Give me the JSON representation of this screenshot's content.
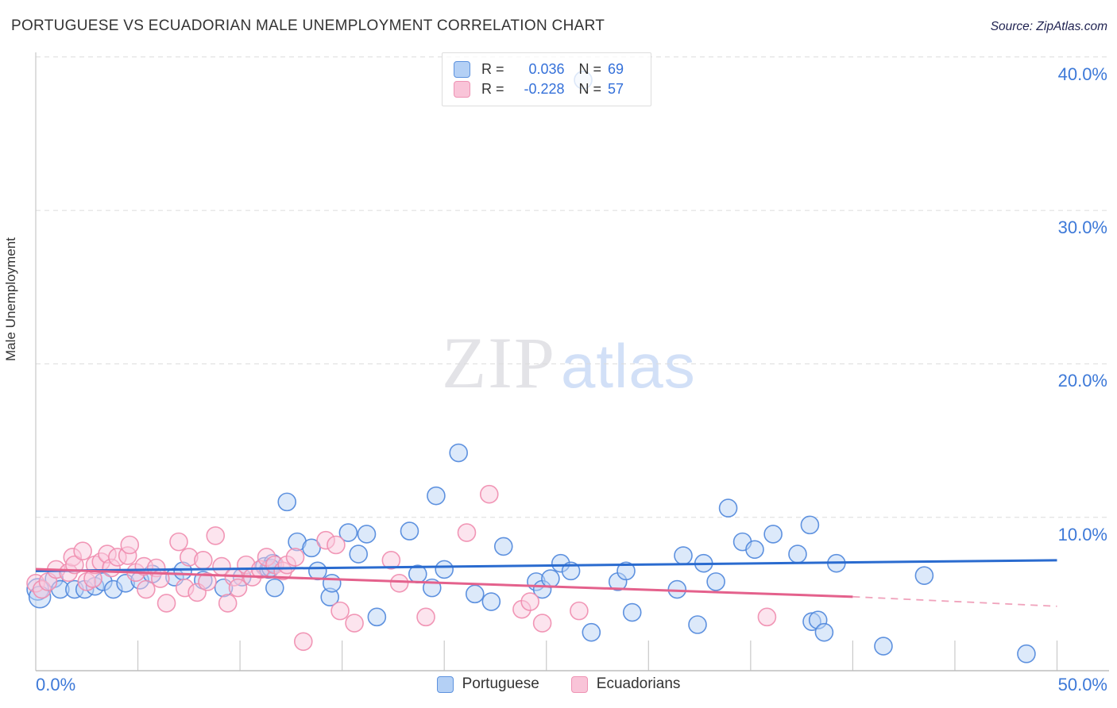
{
  "header": {
    "title": "PORTUGUESE VS ECUADORIAN MALE UNEMPLOYMENT CORRELATION CHART",
    "source": "Source: ZipAtlas.com"
  },
  "watermark": {
    "zip": "ZIP",
    "atlas": "atlas"
  },
  "y_axis": {
    "label": "Male Unemployment",
    "ticks": [
      {
        "value": 40,
        "label": "40.0%"
      },
      {
        "value": 30,
        "label": "30.0%"
      },
      {
        "value": 20,
        "label": "20.0%"
      },
      {
        "value": 10,
        "label": "10.0%"
      }
    ]
  },
  "x_axis": {
    "left_label": "0.0%",
    "right_label": "50.0%"
  },
  "stats_legend": {
    "rows": [
      {
        "series": "Portuguese",
        "r_label": "R =",
        "r_value": "0.036",
        "n_label": "N =",
        "n_value": "69"
      },
      {
        "series": "Ecuadorians",
        "r_label": "R =",
        "r_value": "-0.228",
        "n_label": "N =",
        "n_value": "57"
      }
    ]
  },
  "bottom_legend": {
    "items": [
      {
        "label": "Portuguese"
      },
      {
        "label": "Ecuadorians"
      }
    ]
  },
  "colors": {
    "blue_fill": "#b9d3f5",
    "blue_stroke": "#4e86dc",
    "blue_trend": "#2a6bcf",
    "pink_fill": "#facadd",
    "pink_stroke": "#f08cae",
    "pink_trend": "#e4618c",
    "pink_trend_dash": "#f0a3bc",
    "grid": "#dcdcdc",
    "axis": "#bdbdbd",
    "tick": "#c9c9c9",
    "label_blue": "#3d79d8"
  },
  "chart_data": {
    "type": "scatter",
    "xlabel": "",
    "ylabel": "Male Unemployment",
    "xlim": [
      0,
      50
    ],
    "ylim": [
      0,
      40.3
    ],
    "x_tick_step": 5,
    "gridlines_y": [
      10,
      20,
      30,
      40
    ],
    "legend_position": "bottom",
    "series": [
      {
        "name": "Portuguese",
        "R": 0.036,
        "N": 69,
        "points": [
          [
            0.1,
            5.3,
            13.5
          ],
          [
            0.2,
            4.8,
            13.5
          ],
          [
            0.9,
            6.0
          ],
          [
            1.2,
            5.3
          ],
          [
            1.9,
            5.3
          ],
          [
            2.4,
            5.3
          ],
          [
            2.9,
            5.5
          ],
          [
            3.3,
            5.8
          ],
          [
            3.8,
            5.3
          ],
          [
            4.4,
            5.7
          ],
          [
            5.1,
            5.9
          ],
          [
            5.7,
            6.3
          ],
          [
            6.8,
            6.1
          ],
          [
            7.2,
            6.5
          ],
          [
            8.2,
            5.9
          ],
          [
            9.2,
            5.4
          ],
          [
            10.1,
            6.1
          ],
          [
            11.2,
            6.8
          ],
          [
            11.4,
            6.6
          ],
          [
            11.6,
            7.0
          ],
          [
            11.5,
            6.7
          ],
          [
            11.7,
            5.4
          ],
          [
            12.3,
            11.0
          ],
          [
            12.8,
            8.4
          ],
          [
            13.5,
            8.0
          ],
          [
            13.8,
            6.5
          ],
          [
            14.4,
            4.8
          ],
          [
            14.5,
            5.7
          ],
          [
            15.3,
            9.0
          ],
          [
            15.8,
            7.6
          ],
          [
            16.2,
            8.9
          ],
          [
            16.7,
            3.5
          ],
          [
            18.3,
            9.1
          ],
          [
            18.7,
            6.3
          ],
          [
            19.4,
            5.4
          ],
          [
            19.6,
            11.4
          ],
          [
            20.0,
            6.6
          ],
          [
            20.7,
            14.2
          ],
          [
            21.5,
            5.0
          ],
          [
            22.3,
            4.5
          ],
          [
            22.9,
            8.1
          ],
          [
            24.5,
            5.8
          ],
          [
            24.8,
            5.3
          ],
          [
            25.2,
            6.0
          ],
          [
            25.7,
            7.0
          ],
          [
            26.2,
            6.5
          ],
          [
            26.8,
            38.5
          ],
          [
            27.2,
            2.5
          ],
          [
            28.5,
            5.8
          ],
          [
            28.9,
            6.5
          ],
          [
            29.2,
            3.8
          ],
          [
            31.4,
            5.3
          ],
          [
            31.7,
            7.5
          ],
          [
            32.4,
            3.0
          ],
          [
            32.7,
            7.0
          ],
          [
            33.3,
            5.8
          ],
          [
            33.9,
            10.6
          ],
          [
            34.6,
            8.4
          ],
          [
            35.2,
            7.9
          ],
          [
            36.1,
            8.9
          ],
          [
            37.3,
            7.6
          ],
          [
            37.9,
            9.5
          ],
          [
            38.0,
            3.2
          ],
          [
            38.3,
            3.3
          ],
          [
            38.6,
            2.5
          ],
          [
            39.2,
            7.0
          ],
          [
            41.5,
            1.6
          ],
          [
            43.5,
            6.2
          ],
          [
            48.5,
            1.1
          ]
        ],
        "trend": {
          "x1": 0,
          "y1": 6.5,
          "x2": 50,
          "y2": 7.2
        }
      },
      {
        "name": "Ecuadorians",
        "R": -0.228,
        "N": 57,
        "points": [
          [
            0.0,
            5.7
          ],
          [
            0.3,
            5.3
          ],
          [
            0.6,
            5.8
          ],
          [
            1.0,
            6.6
          ],
          [
            1.6,
            6.4
          ],
          [
            1.8,
            7.4
          ],
          [
            1.9,
            6.9
          ],
          [
            2.3,
            7.8
          ],
          [
            2.5,
            5.8
          ],
          [
            2.8,
            6.0
          ],
          [
            2.9,
            6.9
          ],
          [
            3.2,
            7.1
          ],
          [
            3.5,
            7.6
          ],
          [
            3.7,
            6.7
          ],
          [
            4.0,
            7.4
          ],
          [
            4.5,
            7.5
          ],
          [
            4.6,
            8.2
          ],
          [
            4.9,
            6.4
          ],
          [
            5.3,
            6.8
          ],
          [
            5.4,
            5.3
          ],
          [
            5.9,
            6.7
          ],
          [
            6.1,
            6.0
          ],
          [
            6.4,
            4.4
          ],
          [
            7.0,
            8.4
          ],
          [
            7.3,
            5.4
          ],
          [
            7.5,
            7.4
          ],
          [
            7.9,
            5.1
          ],
          [
            8.2,
            7.2
          ],
          [
            8.4,
            5.8
          ],
          [
            8.8,
            8.8
          ],
          [
            9.1,
            6.8
          ],
          [
            9.4,
            4.4
          ],
          [
            9.7,
            6.1
          ],
          [
            9.9,
            5.4
          ],
          [
            10.3,
            6.9
          ],
          [
            10.6,
            6.1
          ],
          [
            11.0,
            6.6
          ],
          [
            11.3,
            7.4
          ],
          [
            11.7,
            6.9
          ],
          [
            12.1,
            6.5
          ],
          [
            12.3,
            6.9
          ],
          [
            12.7,
            7.4
          ],
          [
            13.1,
            1.9
          ],
          [
            14.2,
            8.5
          ],
          [
            14.7,
            8.2
          ],
          [
            14.9,
            3.9
          ],
          [
            15.6,
            3.1
          ],
          [
            17.4,
            7.2
          ],
          [
            17.8,
            5.7
          ],
          [
            19.1,
            3.5
          ],
          [
            21.1,
            9.0
          ],
          [
            22.2,
            11.5
          ],
          [
            23.8,
            4.0
          ],
          [
            24.2,
            4.5
          ],
          [
            24.8,
            3.1
          ],
          [
            26.6,
            3.9
          ],
          [
            35.8,
            3.5
          ]
        ],
        "trend": {
          "x1": 0,
          "y1": 6.62,
          "x2": 40,
          "y2": 4.82,
          "dash_ext": {
            "x2": 50,
            "y2": 4.2
          }
        }
      }
    ]
  }
}
